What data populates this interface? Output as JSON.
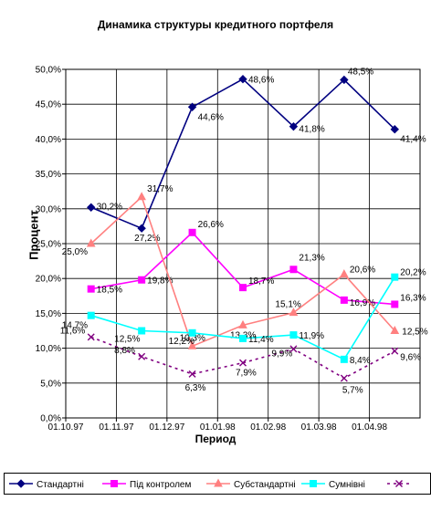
{
  "chart_data": {
    "type": "line",
    "title": "Динамика структуры кредитного портфеля",
    "xlabel": "Период",
    "ylabel": "Процент",
    "ylim": [
      0,
      50
    ],
    "y_ticks": [
      "0,0%",
      "5,0%",
      "10,0%",
      "15,0%",
      "20,0%",
      "25,0%",
      "30,0%",
      "35,0%",
      "40,0%",
      "45,0%",
      "50,0%"
    ],
    "x_ticks": [
      "01.10.97",
      "01.11.97",
      "01.12.97",
      "01.01.98",
      "01.02.98",
      "01.03.98",
      "01.04.98"
    ],
    "grid": true,
    "legend_position": "bottom",
    "series": [
      {
        "name": "Стандартні",
        "color": "#000080",
        "marker": "diamond",
        "dash": "",
        "values": [
          30.2,
          27.2,
          44.6,
          48.6,
          41.8,
          48.5,
          41.4
        ],
        "labels": [
          "30,2%",
          "27,2%",
          "44,6%",
          "48,6%",
          "41,8%",
          "48,5%",
          "41,4%"
        ]
      },
      {
        "name": "Під контролем",
        "color": "#ff00ff",
        "marker": "square",
        "dash": "",
        "values": [
          18.5,
          19.8,
          26.6,
          18.7,
          21.3,
          16.9,
          16.3
        ],
        "labels": [
          "18,5%",
          "19,8%",
          "26,6%",
          "18,7%",
          "21,3%",
          "16,9%",
          "16,3%"
        ]
      },
      {
        "name": "Субстандартні",
        "color": "#ff8080",
        "marker": "triangle",
        "dash": "",
        "values": [
          25.0,
          31.7,
          10.3,
          13.3,
          15.1,
          20.6,
          12.5
        ],
        "labels": [
          "25,0%",
          "31,7%",
          "10,3%",
          "13,3%",
          "15,1%",
          "20,6%",
          "12,5%"
        ]
      },
      {
        "name": "Сумнівні",
        "color": "#00ffff",
        "marker": "square",
        "dash": "",
        "values": [
          14.7,
          12.5,
          12.2,
          11.4,
          11.9,
          8.4,
          20.2
        ],
        "labels": [
          "14,7%",
          "12,5%",
          "12,2%",
          "11,4%",
          "11,9%",
          "8,4%",
          "20,2%"
        ]
      },
      {
        "name": "",
        "color": "#800080",
        "marker": "x",
        "dash": "3,4",
        "values": [
          11.6,
          8.8,
          6.3,
          7.9,
          9.9,
          5.7,
          9.6
        ],
        "labels": [
          "11,6%",
          "8,8%",
          "6,3%",
          "7,9%",
          "9,9%",
          "5,7%",
          "9,6%"
        ]
      }
    ]
  }
}
